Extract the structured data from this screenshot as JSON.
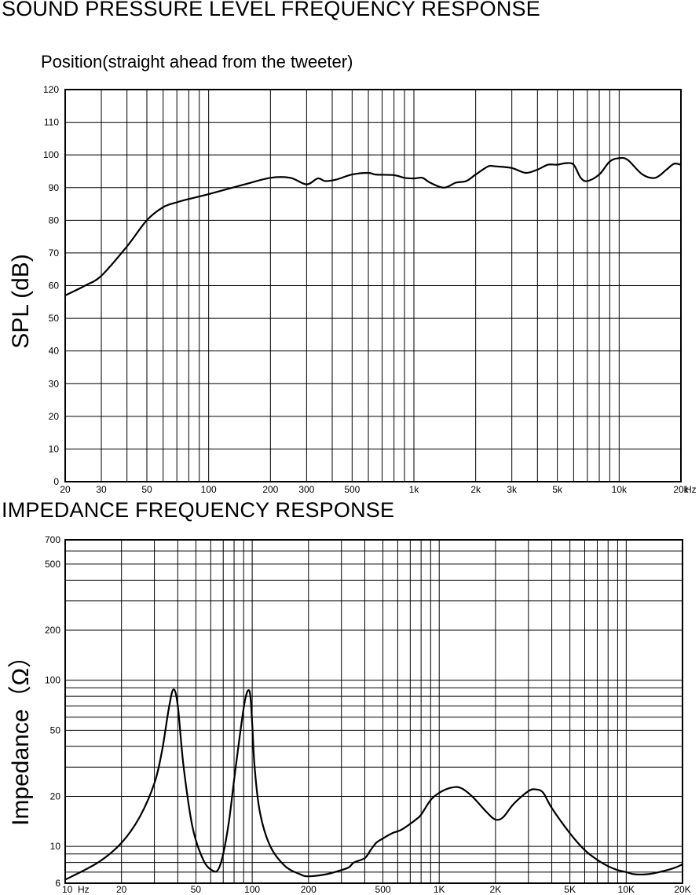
{
  "chart_data": [
    {
      "type": "line",
      "title": "SOUND PRESSURE LEVEL FREQUENCY RESPONSE",
      "subtitle": "Position(straight ahead from the tweeter)",
      "xlabel": "",
      "ylabel": "SPL  (dB)",
      "x_unit": "Hz",
      "x_scale": "log",
      "xlim": [
        20,
        20000
      ],
      "ylim": [
        0,
        120
      ],
      "grid": true,
      "x_tick_values": [
        20,
        30,
        50,
        100,
        200,
        300,
        500,
        1000,
        2000,
        3000,
        5000,
        10000,
        20000
      ],
      "x_tick_labels": [
        "20",
        "30",
        "50",
        "100",
        "200",
        "300",
        "500",
        "1k",
        "2k",
        "3k",
        "5k",
        "10k",
        "20k"
      ],
      "y_ticks": [
        0,
        10,
        20,
        30,
        40,
        50,
        60,
        70,
        80,
        90,
        100,
        110,
        120
      ],
      "series": [
        {
          "x": [
            20,
            25,
            30,
            40,
            50,
            60,
            70,
            80,
            100,
            150,
            200,
            250,
            300,
            340,
            370,
            420,
            500,
            600,
            650,
            800,
            900,
            1000,
            1100,
            1200,
            1400,
            1600,
            1800,
            2000,
            2300,
            2500,
            3000,
            3500,
            4000,
            4500,
            5000,
            5500,
            6000,
            6500,
            7000,
            8000,
            9000,
            10000,
            11000,
            13000,
            15000,
            17000,
            18500,
            20000
          ],
          "y": [
            57,
            60,
            63,
            72,
            80,
            84,
            85.5,
            86.5,
            88,
            91,
            93,
            93,
            91,
            92.8,
            92,
            92.5,
            94,
            94.5,
            94,
            93.8,
            93,
            92.8,
            93,
            91.5,
            90,
            91.5,
            92,
            94,
            96.5,
            96.5,
            96,
            94.5,
            95.5,
            97,
            97,
            97.5,
            97,
            93,
            92,
            94,
            98,
            99,
            98.5,
            94,
            93,
            95.5,
            97.3,
            97
          ]
        }
      ]
    },
    {
      "type": "line",
      "title": "IMPEDANCE FREQUENCY RESPONSE",
      "xlabel": "",
      "ylabel": "Impedance（Ω）",
      "x_unit": "Hz",
      "x_scale": "log",
      "y_scale": "log",
      "xlim": [
        10,
        20000
      ],
      "ylim": [
        6,
        700
      ],
      "grid": true,
      "x_tick_values": [
        10,
        20,
        50,
        100,
        200,
        500,
        1000,
        2000,
        5000,
        10000,
        20000
      ],
      "x_tick_labels": [
        "10",
        "20",
        "50",
        "100",
        "200",
        "500",
        "1K",
        "2K",
        "5K",
        "10K",
        "20K"
      ],
      "y_tick_values": [
        6,
        10,
        20,
        50,
        100,
        200,
        500,
        700
      ],
      "y_tick_labels": [
        "6",
        "10",
        "20",
        "50",
        "100",
        "200",
        "500",
        "700"
      ],
      "series": [
        {
          "x": [
            10,
            15,
            20,
            25,
            30,
            33,
            36,
            38,
            40,
            43,
            48,
            55,
            62,
            66,
            70,
            75,
            80,
            86,
            92,
            97,
            100,
            103,
            110,
            125,
            150,
            180,
            200,
            250,
            300,
            330,
            350,
            400,
            430,
            460,
            490,
            560,
            620,
            690,
            750,
            800,
            900,
            1000,
            1150,
            1300,
            1500,
            1800,
            2000,
            2200,
            2500,
            3000,
            3300,
            3600,
            4000,
            5000,
            6000,
            7000,
            8000,
            9000,
            10000,
            11000,
            13000,
            15000,
            18000,
            20000
          ],
          "y": [
            6.3,
            8,
            10.5,
            15,
            24,
            38,
            70,
            88,
            70,
            30,
            13,
            8.2,
            7.1,
            7.3,
            9,
            14,
            25,
            47,
            78,
            85,
            55,
            30,
            16,
            10,
            7.6,
            6.8,
            6.6,
            6.8,
            7.2,
            7.5,
            8,
            8.5,
            9.5,
            10.5,
            11,
            12,
            12.5,
            13.5,
            14.5,
            15.5,
            19,
            21,
            22.5,
            22.5,
            20,
            16,
            14.5,
            15,
            18,
            21.5,
            22,
            21,
            17,
            12,
            9.5,
            8.3,
            7.6,
            7.2,
            7.0,
            6.8,
            6.8,
            7.0,
            7.4,
            7.8
          ]
        }
      ]
    }
  ],
  "labels": {
    "hz": "Hz",
    "hz_imp": "Hz"
  }
}
